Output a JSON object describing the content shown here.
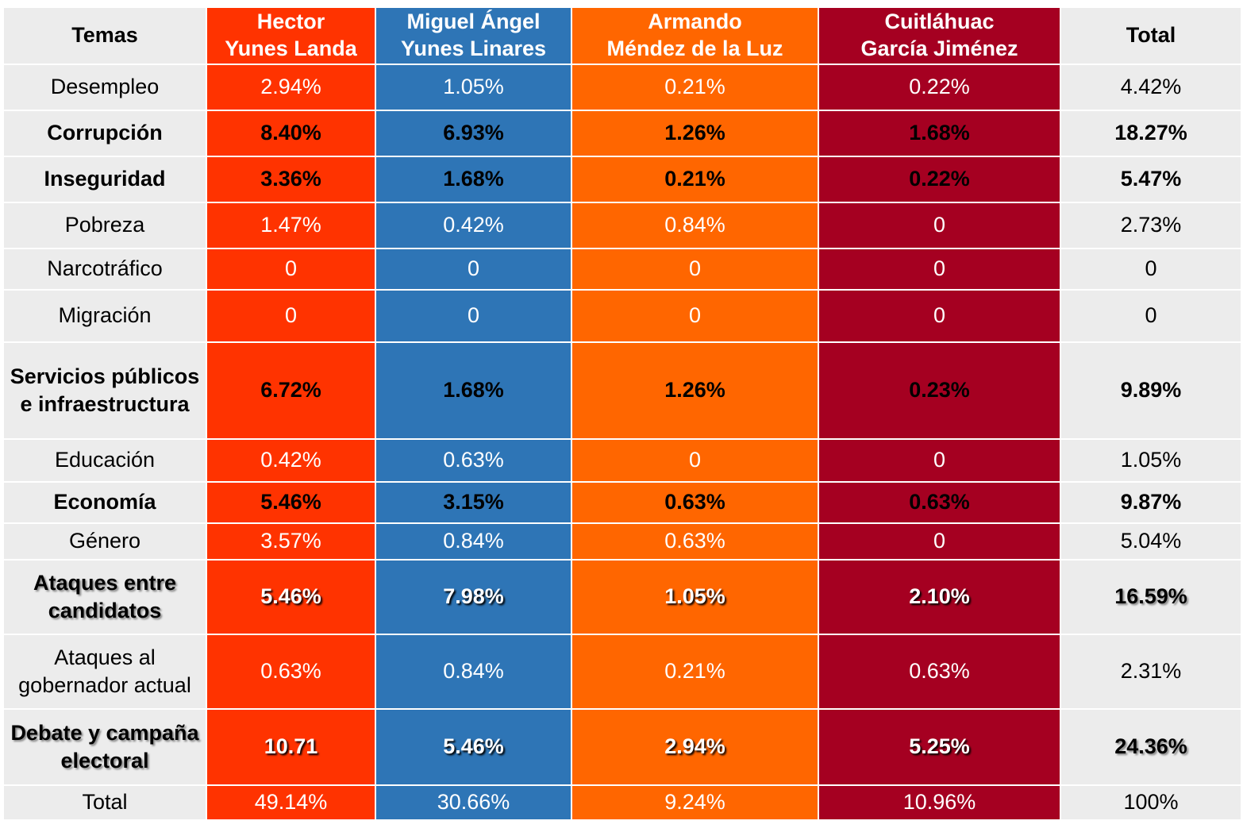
{
  "chart_data": {
    "type": "table",
    "columns": [
      "Temas",
      "Hector\nYunes Landa",
      "Miguel Ángel\nYunes Linares",
      "Armando\nMéndez de la Luz",
      "Cuitláhuac\nGarcía Jiménez",
      "Total"
    ],
    "colors": [
      "#ececec",
      "#ff3300",
      "#2e75b6",
      "#ff6600",
      "#a50021",
      "#ececec"
    ],
    "rows": [
      {
        "style": "normal",
        "cells": [
          "Desempleo",
          "2.94%",
          "1.05%",
          "0.21%",
          "0.22%",
          "4.42%"
        ]
      },
      {
        "style": "emph",
        "cells": [
          "Corrupción",
          "8.40%",
          "6.93%",
          "1.26%",
          "1.68%",
          "18.27%"
        ]
      },
      {
        "style": "emph",
        "cells": [
          "Inseguridad",
          "3.36%",
          "1.68%",
          "0.21%",
          "0.22%",
          "5.47%"
        ]
      },
      {
        "style": "normal",
        "cells": [
          "Pobreza",
          "1.47%",
          "0.42%",
          "0.84%",
          "0",
          "2.73%"
        ]
      },
      {
        "style": "normal",
        "cells": [
          "Narcotráfico",
          "0",
          "0",
          "0",
          "0",
          "0"
        ]
      },
      {
        "style": "normal",
        "cells": [
          "Migración",
          "0",
          "0",
          "0",
          "0",
          "0"
        ]
      },
      {
        "style": "emph",
        "cells": [
          "Servicios públicos e infraestructura",
          "6.72%",
          "1.68%",
          "1.26%",
          "0.23%",
          "9.89%"
        ]
      },
      {
        "style": "normal",
        "cells": [
          "Educación",
          "0.42%",
          "0.63%",
          "0",
          "0",
          "1.05%"
        ]
      },
      {
        "style": "emph",
        "cells": [
          "Economía",
          "5.46%",
          "3.15%",
          "0.63%",
          "0.63%",
          "9.87%"
        ]
      },
      {
        "style": "normal",
        "cells": [
          "Género",
          "3.57%",
          "0.84%",
          "0.63%",
          "0",
          "5.04%"
        ]
      },
      {
        "style": "shadow",
        "cells": [
          "Ataques entre candidatos",
          "5.46%",
          "7.98%",
          "1.05%",
          "2.10%",
          "16.59%"
        ]
      },
      {
        "style": "normal",
        "cells": [
          "Ataques al gobernador actual",
          "0.63%",
          "0.84%",
          "0.21%",
          "0.63%",
          "2.31%"
        ]
      },
      {
        "style": "shadow",
        "cells": [
          "Debate y campaña electoral",
          "10.71",
          "5.46%",
          "2.94%",
          "5.25%",
          "24.36%"
        ]
      },
      {
        "style": "normal",
        "cells": [
          "Total",
          "49.14%",
          "30.66%",
          "9.24%",
          "10.96%",
          "100%"
        ]
      }
    ]
  }
}
